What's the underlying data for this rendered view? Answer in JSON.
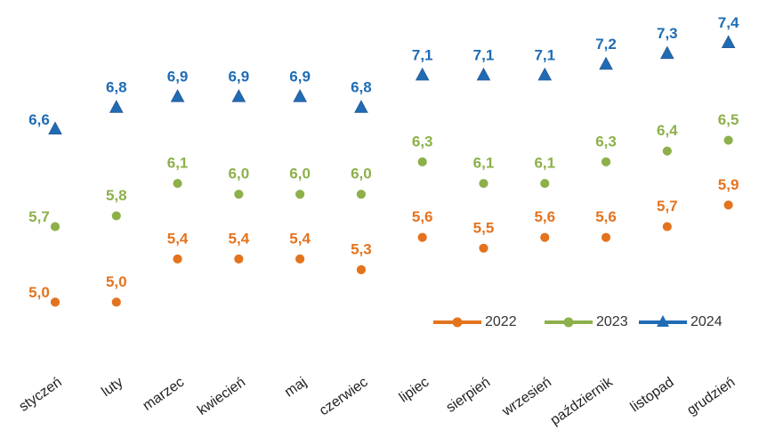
{
  "chart_data": {
    "type": "line",
    "categories": [
      "styczeń",
      "luty",
      "marzec",
      "kwiecień",
      "maj",
      "czerwiec",
      "lipiec",
      "sierpień",
      "wrzesień",
      "październik",
      "listopad",
      "grudzień"
    ],
    "series": [
      {
        "name": "2022",
        "color": "#e4731e",
        "marker": "circle",
        "values": [
          5.0,
          5.0,
          5.4,
          5.4,
          5.4,
          5.3,
          5.6,
          5.5,
          5.6,
          5.6,
          5.7,
          5.9
        ],
        "value_labels": [
          "5,0",
          "5,0",
          "5,4",
          "5,4",
          "5,4",
          "5,3",
          "5,6",
          "5,5",
          "5,6",
          "5,6",
          "5,7",
          "5,9"
        ]
      },
      {
        "name": "2023",
        "color": "#8db04a",
        "marker": "circle",
        "values": [
          5.7,
          5.8,
          6.1,
          6.0,
          6.0,
          6.0,
          6.3,
          6.1,
          6.1,
          6.3,
          6.4,
          6.5
        ],
        "value_labels": [
          "5,7",
          "5,8",
          "6,1",
          "6,0",
          "6,0",
          "6,0",
          "6,3",
          "6,1",
          "6,1",
          "6,3",
          "6,4",
          "6,5"
        ]
      },
      {
        "name": "2024",
        "color": "#1f6cb5",
        "marker": "triangle",
        "values": [
          6.6,
          6.8,
          6.9,
          6.9,
          6.9,
          6.8,
          7.1,
          7.1,
          7.1,
          7.2,
          7.3,
          7.4
        ],
        "value_labels": [
          "6,6",
          "6,8",
          "6,9",
          "6,9",
          "6,9",
          "6,8",
          "7,1",
          "7,1",
          "7,1",
          "7,2",
          "7,3",
          "7,4"
        ]
      }
    ],
    "ylim": [
      4.5,
      7.8
    ],
    "legend": "lower right"
  }
}
